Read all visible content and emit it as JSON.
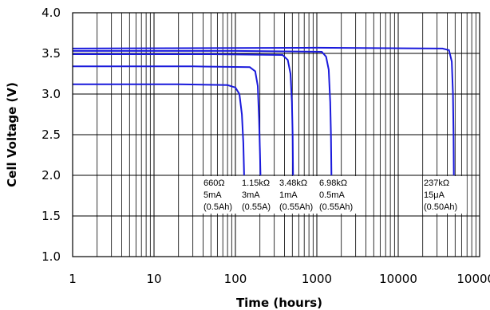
{
  "chart_data": {
    "type": "line",
    "x_scale": "log",
    "xlim": [
      1,
      100000
    ],
    "ylim": [
      1.0,
      4.0
    ],
    "grid": true,
    "xlabel": "Time (hours)",
    "ylabel": "Cell Voltage (V)",
    "x_tick_labels": [
      "1",
      "10",
      "100",
      "1000",
      "10000",
      "100000"
    ],
    "x_ticks": [
      1,
      10,
      100,
      1000,
      10000,
      100000
    ],
    "y_tick_labels": [
      "1.0",
      "1.5",
      "2.0",
      "2.5",
      "3.0",
      "3.5",
      "4.0"
    ],
    "y_ticks": [
      1.0,
      1.5,
      2.0,
      2.5,
      3.0,
      3.5,
      4.0
    ],
    "series": [
      {
        "name": "660Ω",
        "annotation": [
          "660Ω",
          "5mA",
          "(0.5Ah)"
        ],
        "points": [
          [
            1,
            3.12
          ],
          [
            20,
            3.12
          ],
          [
            80,
            3.11
          ],
          [
            100,
            3.08
          ],
          [
            112,
            3.0
          ],
          [
            120,
            2.75
          ],
          [
            125,
            2.4
          ],
          [
            128,
            2.0
          ]
        ]
      },
      {
        "name": "1.15kΩ",
        "annotation": [
          "1.15kΩ",
          "3mA",
          "(0.55A)"
        ],
        "points": [
          [
            1,
            3.34
          ],
          [
            30,
            3.34
          ],
          [
            150,
            3.33
          ],
          [
            175,
            3.28
          ],
          [
            188,
            3.1
          ],
          [
            195,
            2.7
          ],
          [
            200,
            2.3
          ],
          [
            203,
            2.0
          ]
        ]
      },
      {
        "name": "3.48kΩ",
        "annotation": [
          "3.48kΩ",
          "1mA",
          "(0.55Ah)"
        ],
        "points": [
          [
            1,
            3.49
          ],
          [
            50,
            3.49
          ],
          [
            380,
            3.48
          ],
          [
            440,
            3.42
          ],
          [
            475,
            3.25
          ],
          [
            495,
            2.9
          ],
          [
            505,
            2.5
          ],
          [
            510,
            2.0
          ]
        ]
      },
      {
        "name": "6.98kΩ",
        "annotation": [
          "6.98kΩ",
          "0.5mA",
          "(0.55Ah)"
        ],
        "points": [
          [
            1,
            3.53
          ],
          [
            100,
            3.53
          ],
          [
            1150,
            3.52
          ],
          [
            1300,
            3.46
          ],
          [
            1400,
            3.3
          ],
          [
            1460,
            2.9
          ],
          [
            1490,
            2.5
          ],
          [
            1510,
            2.0
          ]
        ]
      },
      {
        "name": "237kΩ",
        "annotation": [
          "237kΩ",
          "15μA",
          "(0.50Ah)"
        ],
        "points": [
          [
            1,
            3.56
          ],
          [
            1000,
            3.57
          ],
          [
            35000,
            3.56
          ],
          [
            42000,
            3.54
          ],
          [
            45500,
            3.4
          ],
          [
            47000,
            3.0
          ],
          [
            47800,
            2.5
          ],
          [
            48200,
            2.0
          ]
        ]
      }
    ]
  }
}
